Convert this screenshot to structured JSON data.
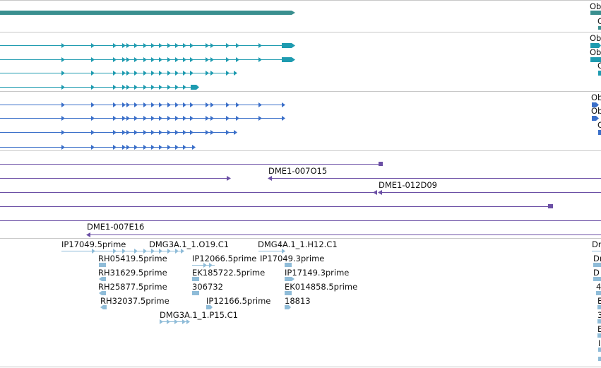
{
  "colors": {
    "teal_dark": "#3a8f8f",
    "teal": "#1e9bb0",
    "blue": "#3a6fc9",
    "purple": "#6b4fa5",
    "light_blue": "#8fbcd8",
    "separator": "#c8c8c8"
  },
  "tracks": {
    "gene": {
      "edge_label": "Ob"
    },
    "transcripts_teal": {
      "edge_labels": [
        "Ob",
        "Ob",
        "C",
        "C"
      ]
    },
    "transcripts_blue": {
      "edge_labels": [
        "Ob",
        "Ob",
        "C"
      ]
    },
    "clones": {
      "labels": [
        "DME1-007O15",
        "DME1-012D09",
        "DME1-007E16"
      ]
    },
    "ests": {
      "labels": [
        "IP17049.5prime",
        "DMG3A.1_1.O19.C1",
        "DMG4A.1_1.H12.C1",
        "RH05419.5prime",
        "IP12066.5prime",
        "IP17049.3prime",
        "RH31629.5prime",
        "EK185722.5prime",
        "IP17149.3prime",
        "RH25877.5prime",
        "306732",
        "EK014858.5prime",
        "RH32037.5prime",
        "IP12166.5prime",
        "18813",
        "DMG3A.1_1.P15.C1"
      ],
      "edge_labels": [
        "Dr",
        "Dr",
        "D",
        "4",
        "E",
        "3",
        "E",
        "I"
      ]
    }
  }
}
